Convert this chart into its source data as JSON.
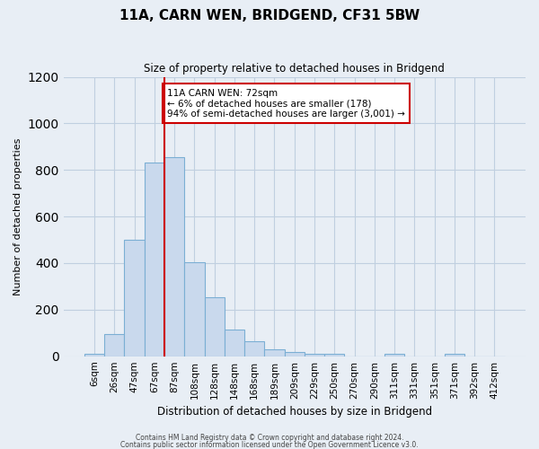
{
  "title": "11A, CARN WEN, BRIDGEND, CF31 5BW",
  "subtitle": "Size of property relative to detached houses in Bridgend",
  "xlabel": "Distribution of detached houses by size in Bridgend",
  "ylabel": "Number of detached properties",
  "footer_line1": "Contains HM Land Registry data © Crown copyright and database right 2024.",
  "footer_line2": "Contains public sector information licensed under the Open Government Licence v3.0.",
  "bin_labels": [
    "6sqm",
    "26sqm",
    "47sqm",
    "67sqm",
    "87sqm",
    "108sqm",
    "128sqm",
    "148sqm",
    "168sqm",
    "189sqm",
    "209sqm",
    "229sqm",
    "250sqm",
    "270sqm",
    "290sqm",
    "311sqm",
    "331sqm",
    "351sqm",
    "371sqm",
    "392sqm",
    "412sqm"
  ],
  "bar_values": [
    10,
    95,
    500,
    830,
    855,
    405,
    255,
    115,
    65,
    30,
    18,
    10,
    10,
    0,
    0,
    10,
    0,
    0,
    10,
    0,
    0
  ],
  "bar_color": "#c9d9ed",
  "bar_edge_color": "#7bafd4",
  "grid_color": "#c0cfe0",
  "background_color": "#e8eef5",
  "vline_x_index": 3,
  "vline_color": "#cc0000",
  "annotation_title": "11A CARN WEN: 72sqm",
  "annotation_line1": "← 6% of detached houses are smaller (178)",
  "annotation_line2": "94% of semi-detached houses are larger (3,001) →",
  "annotation_box_color": "#ffffff",
  "annotation_box_edge": "#cc0000",
  "ylim": [
    0,
    1200
  ],
  "yticks": [
    0,
    200,
    400,
    600,
    800,
    1000,
    1200
  ]
}
